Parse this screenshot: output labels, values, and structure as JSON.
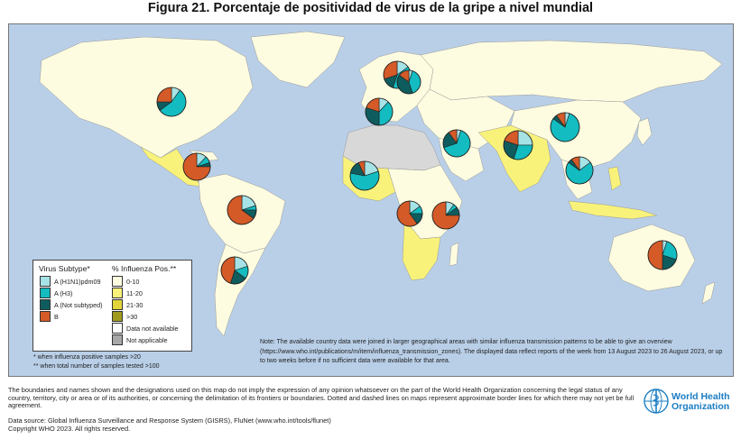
{
  "title": "Figura 21. Porcentaje de positividad de virus de la gripe a nivel mundial",
  "colors": {
    "ocean": "#b9cfe8",
    "land_0_10": "#fefce0",
    "land_11_20": "#f8f27a",
    "land_21_30": "#e2d53a",
    "land_gt30": "#9f9a1e",
    "no_data": "#ffffff",
    "not_applicable": "#a8a8a8",
    "h1n1pdm09": "#a6e3e6",
    "h3": "#13bcc0",
    "not_subtyped": "#0f5c5e",
    "b": "#d45a28"
  },
  "legend": {
    "subtype_header": "Virus Subtype*",
    "positivity_header": "% Influenza Pos.**",
    "subtypes": [
      {
        "label": "A (H1N1)pdm09",
        "color": "#a6e3e6"
      },
      {
        "label": "A (H3)",
        "color": "#13bcc0"
      },
      {
        "label": "A (Not subtyped)",
        "color": "#0f5c5e"
      },
      {
        "label": "B",
        "color": "#d45a28"
      }
    ],
    "positivity": [
      {
        "label": "0-10",
        "color": "#fefce0"
      },
      {
        "label": "11-20",
        "color": "#f8f27a"
      },
      {
        "label": "21-30",
        "color": "#e2d53a"
      },
      {
        "label": ">30",
        "color": "#9f9a1e"
      },
      {
        "label": "Data not available",
        "color": "#ffffff"
      },
      {
        "label": "Not applicable",
        "color": "#a8a8a8"
      }
    ]
  },
  "pies": [
    {
      "region": "North America",
      "values": [
        10,
        55,
        10,
        25
      ]
    },
    {
      "region": "Central America and Caribbean",
      "values": [
        12,
        8,
        5,
        75
      ]
    },
    {
      "region": "Tropical South America",
      "values": [
        20,
        5,
        10,
        65
      ]
    },
    {
      "region": "Temperate South America",
      "values": [
        20,
        15,
        20,
        45
      ]
    },
    {
      "region": "Northern Europe",
      "values": [
        15,
        40,
        15,
        30
      ]
    },
    {
      "region": "Eastern Europe",
      "values": [
        5,
        40,
        40,
        15
      ]
    },
    {
      "region": "South West Europe",
      "values": [
        12,
        38,
        30,
        20
      ]
    },
    {
      "region": "Western Africa",
      "values": [
        20,
        58,
        15,
        7
      ]
    },
    {
      "region": "Western Asia",
      "values": [
        5,
        65,
        20,
        10
      ]
    },
    {
      "region": "Southern Asia",
      "values": [
        25,
        30,
        25,
        20
      ]
    },
    {
      "region": "Eastern Asia",
      "values": [
        5,
        80,
        5,
        10
      ]
    },
    {
      "region": "South-East Asia",
      "values": [
        15,
        70,
        5,
        10
      ]
    },
    {
      "region": "Middle Africa",
      "values": [
        15,
        10,
        15,
        60
      ]
    },
    {
      "region": "Eastern Africa",
      "values": [
        10,
        5,
        10,
        75
      ]
    },
    {
      "region": "Oceania",
      "values": [
        5,
        25,
        20,
        50
      ]
    }
  ],
  "footnotes": {
    "line1": "* when influenza positive samples >20",
    "line2": "** when total number of samples tested >100"
  },
  "note": "Note: The available country data were joined in larger geographical areas with similar influenza transmission patterns to be able to give an overview (https://www.who.int/publications/m/item/influenza_transmission_zones). The displayed data reflect reports of the week from 13 August 2023 to 26 August 2023, or up to two weeks before if no sufficient data were available for that area.",
  "disclaimer": "The boundaries and names shown and the designations used on this map do not imply the expression of any opinion whatsoever on the part of the World Health Organization concerning the legal status of any country, territory, city or area or of its authorities, or concerning the delimitation of its frontiers or boundaries. Dotted and dashed lines on maps represent approximate border lines for which there may not yet be full agreement.",
  "source": {
    "line1": "Data source: Global Influenza Surveillance and Response System (GISRS), FluNet (www.who.int/tools/flunet)",
    "line2": "Copyright WHO 2023. All rights reserved."
  },
  "who_logo": {
    "line1": "World Health",
    "line2": "Organization"
  }
}
